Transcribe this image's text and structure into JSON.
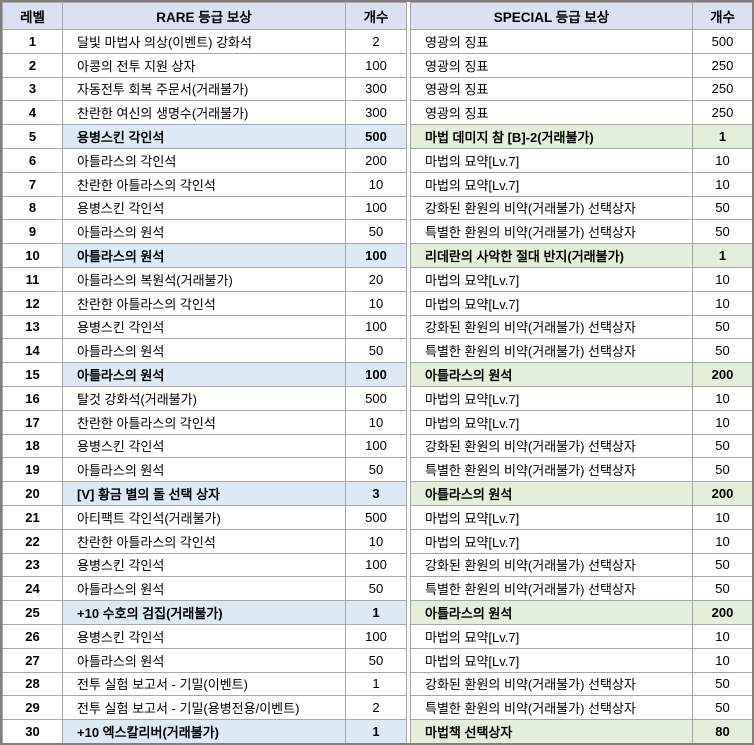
{
  "table": {
    "headers": {
      "level": "레벨",
      "rare": "RARE 등급 보상",
      "rare_count": "개수",
      "special": "SPECIAL 등급 보상",
      "special_count": "개수"
    },
    "rows": [
      {
        "level": "1",
        "rare": "달빛 마법사 의상(이벤트) 강화석",
        "rare_count": "2",
        "special": "영광의 징표",
        "special_count": "500",
        "milestone": false
      },
      {
        "level": "2",
        "rare": "아콩의 전투 지원 상자",
        "rare_count": "100",
        "special": "영광의 징표",
        "special_count": "250",
        "milestone": false
      },
      {
        "level": "3",
        "rare": "자동전투 회복 주문서(거래불가)",
        "rare_count": "300",
        "special": "영광의 징표",
        "special_count": "250",
        "milestone": false
      },
      {
        "level": "4",
        "rare": "찬란한 여신의 생명수(거래불가)",
        "rare_count": "300",
        "special": "영광의 징표",
        "special_count": "250",
        "milestone": false
      },
      {
        "level": "5",
        "rare": "용병스킨 각인석",
        "rare_count": "500",
        "special": "마법 데미지 참 [B]-2(거래불가)",
        "special_count": "1",
        "milestone": true
      },
      {
        "level": "6",
        "rare": "아틀라스의 각인석",
        "rare_count": "200",
        "special": "마법의 묘약[Lv.7]",
        "special_count": "10",
        "milestone": false
      },
      {
        "level": "7",
        "rare": "찬란한 아틀라스의 각인석",
        "rare_count": "10",
        "special": "마법의 묘약[Lv.7]",
        "special_count": "10",
        "milestone": false
      },
      {
        "level": "8",
        "rare": "용병스킨 각인석",
        "rare_count": "100",
        "special": "강화된 환원의 비약(거래불가) 선택상자",
        "special_count": "50",
        "milestone": false
      },
      {
        "level": "9",
        "rare": "아틀라스의 원석",
        "rare_count": "50",
        "special": "특별한 환원의 비약(거래불가) 선택상자",
        "special_count": "50",
        "milestone": false
      },
      {
        "level": "10",
        "rare": "아틀라스의 원석",
        "rare_count": "100",
        "special": "리데란의 사악한 절대 반지(거래불가)",
        "special_count": "1",
        "milestone": true
      },
      {
        "level": "11",
        "rare": "아틀라스의 복원석(거래불가)",
        "rare_count": "20",
        "special": "마법의 묘약[Lv.7]",
        "special_count": "10",
        "milestone": false
      },
      {
        "level": "12",
        "rare": "찬란한 아틀라스의 각인석",
        "rare_count": "10",
        "special": "마법의 묘약[Lv.7]",
        "special_count": "10",
        "milestone": false
      },
      {
        "level": "13",
        "rare": "용병스킨 각인석",
        "rare_count": "100",
        "special": "강화된 환원의 비약(거래불가) 선택상자",
        "special_count": "50",
        "milestone": false
      },
      {
        "level": "14",
        "rare": "아틀라스의 원석",
        "rare_count": "50",
        "special": "특별한 환원의 비약(거래불가) 선택상자",
        "special_count": "50",
        "milestone": false
      },
      {
        "level": "15",
        "rare": "아틀라스의 원석",
        "rare_count": "100",
        "special": "아틀라스의 원석",
        "special_count": "200",
        "milestone": true
      },
      {
        "level": "16",
        "rare": "탈것 강화석(거래불가)",
        "rare_count": "500",
        "special": "마법의 묘약[Lv.7]",
        "special_count": "10",
        "milestone": false
      },
      {
        "level": "17",
        "rare": "찬란한 아틀라스의 각인석",
        "rare_count": "10",
        "special": "마법의 묘약[Lv.7]",
        "special_count": "10",
        "milestone": false
      },
      {
        "level": "18",
        "rare": "용병스킨 각인석",
        "rare_count": "100",
        "special": "강화된 환원의 비약(거래불가) 선택상자",
        "special_count": "50",
        "milestone": false
      },
      {
        "level": "19",
        "rare": "아틀라스의 원석",
        "rare_count": "50",
        "special": "특별한 환원의 비약(거래불가) 선택상자",
        "special_count": "50",
        "milestone": false
      },
      {
        "level": "20",
        "rare": "[V] 황금 별의 돌 선택 상자",
        "rare_count": "3",
        "special": "아틀라스의 원석",
        "special_count": "200",
        "milestone": true
      },
      {
        "level": "21",
        "rare": "아티팩트 각인석(거래불가)",
        "rare_count": "500",
        "special": "마법의 묘약[Lv.7]",
        "special_count": "10",
        "milestone": false
      },
      {
        "level": "22",
        "rare": "찬란한 아틀라스의 각인석",
        "rare_count": "10",
        "special": "마법의 묘약[Lv.7]",
        "special_count": "10",
        "milestone": false
      },
      {
        "level": "23",
        "rare": "용병스킨 각인석",
        "rare_count": "100",
        "special": "강화된 환원의 비약(거래불가) 선택상자",
        "special_count": "50",
        "milestone": false
      },
      {
        "level": "24",
        "rare": "아틀라스의 원석",
        "rare_count": "50",
        "special": "특별한 환원의 비약(거래불가) 선택상자",
        "special_count": "50",
        "milestone": false
      },
      {
        "level": "25",
        "rare": "+10 수호의 검집(거래불가)",
        "rare_count": "1",
        "special": "아틀라스의 원석",
        "special_count": "200",
        "milestone": true
      },
      {
        "level": "26",
        "rare": "용병스킨 각인석",
        "rare_count": "100",
        "special": "마법의 묘약[Lv.7]",
        "special_count": "10",
        "milestone": false
      },
      {
        "level": "27",
        "rare": "아틀라스의 원석",
        "rare_count": "50",
        "special": "마법의 묘약[Lv.7]",
        "special_count": "10",
        "milestone": false
      },
      {
        "level": "28",
        "rare": "전투 실험 보고서 - 기밀(이벤트)",
        "rare_count": "1",
        "special": "강화된 환원의 비약(거래불가) 선택상자",
        "special_count": "50",
        "milestone": false
      },
      {
        "level": "29",
        "rare": "전투 실험 보고서 - 기밀(용병전용/이벤트)",
        "rare_count": "2",
        "special": "특별한 환원의 비약(거래불가) 선택상자",
        "special_count": "50",
        "milestone": false
      },
      {
        "level": "30",
        "rare": "+10 엑스칼리버(거래불가)",
        "rare_count": "1",
        "special": "마법책 선택상자",
        "special_count": "80",
        "milestone": true
      }
    ]
  },
  "colors": {
    "header_bg": "#dbe0f2",
    "rare_highlight": "#ddeaf6",
    "special_highlight": "#e3efda",
    "grid_line": "#a6a6a6",
    "outer_border": "#7f7f7f"
  }
}
